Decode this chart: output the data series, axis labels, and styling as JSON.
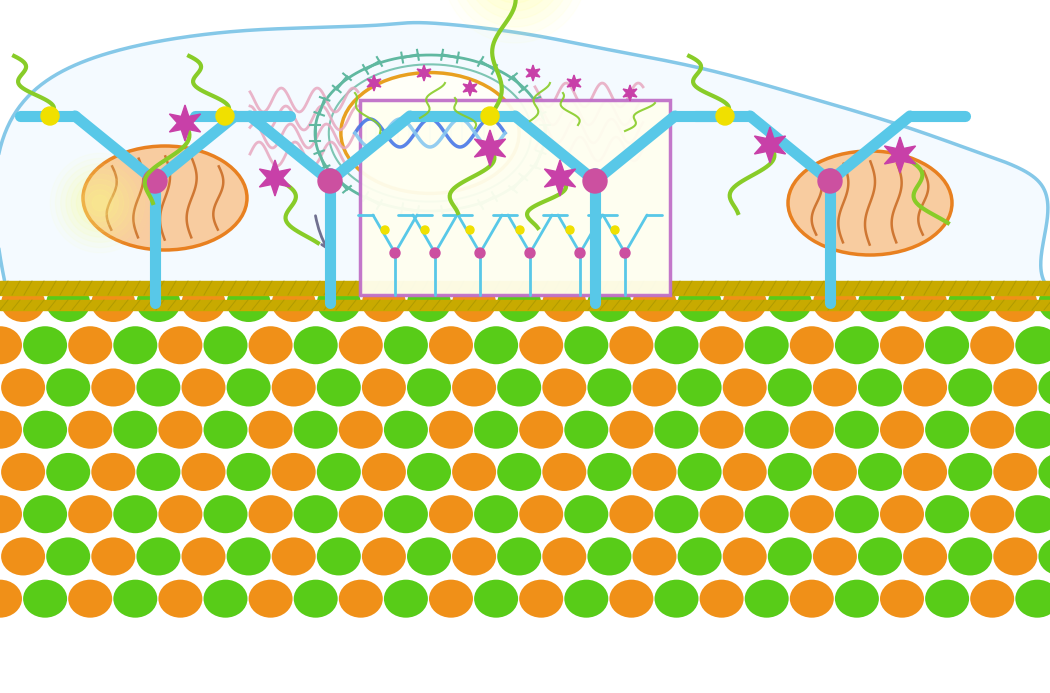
{
  "fig_width": 10.5,
  "fig_height": 6.93,
  "bg_color": "#ffffff",
  "cell_color": "#85c8e8",
  "cell_fill": "#f4faff",
  "nucleus_outer_color": "#60b8a0",
  "nucleus_inner_color": "#e8a020",
  "nucleus_fill": "#fffff8",
  "er_color": "#e8a8c0",
  "mito_outer": "#e88020",
  "mito_fill": "#f8cca0",
  "mito_inner": "#c86820",
  "membrane_gold": "#c8aa00",
  "membrane_green": "#b0d000",
  "antibody_color": "#58c8e8",
  "antibody_joint": "#cc50a0",
  "oligo_color": "#88cc28",
  "dye_color": "#c840a8",
  "yellow_dot": "#f0e000",
  "green_ball": "#58cc18",
  "orange_ball": "#f09018",
  "pink_box_color": "#c070c8",
  "zoom_box_fill": "#fffff0",
  "dna_color1": "#4878e8",
  "dna_color2": "#88c8f0"
}
